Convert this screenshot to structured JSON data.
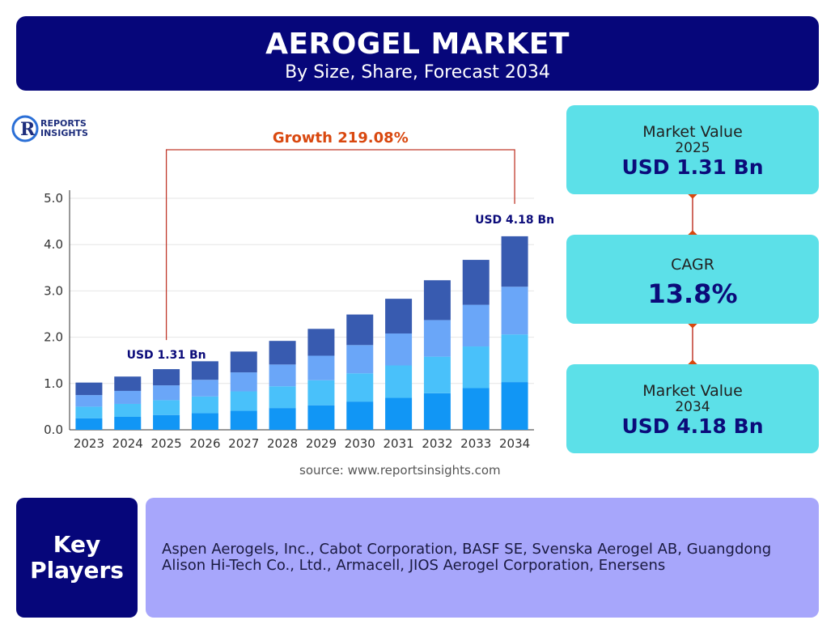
{
  "header": {
    "title": "AEROGEL MARKET",
    "subtitle": "By Size, Share, Forecast 2034"
  },
  "logo": {
    "line1": "REPORTS",
    "line2": "INSIGHTS"
  },
  "colors": {
    "navy": "#06067a",
    "teal": "#5ce0e8",
    "lavender": "#a7a6fb",
    "growth": "#d9480f",
    "seg": [
      "#1196f5",
      "#49c1fa",
      "#6aa6f8",
      "#385bb0"
    ]
  },
  "chart_data": {
    "type": "bar",
    "stacked": true,
    "categories": [
      "2023",
      "2024",
      "2025",
      "2026",
      "2027",
      "2028",
      "2029",
      "2030",
      "2031",
      "2032",
      "2033",
      "2034"
    ],
    "totals": [
      1.02,
      1.15,
      1.31,
      1.48,
      1.69,
      1.92,
      2.18,
      2.49,
      2.83,
      3.23,
      3.67,
      4.18
    ],
    "series": [
      {
        "values": [
          0.25,
          0.28,
          0.32,
          0.36,
          0.41,
          0.47,
          0.53,
          0.61,
          0.69,
          0.79,
          0.9,
          1.03
        ]
      },
      {
        "values": [
          0.25,
          0.28,
          0.32,
          0.36,
          0.42,
          0.47,
          0.54,
          0.61,
          0.7,
          0.79,
          0.9,
          1.03
        ]
      },
      {
        "values": [
          0.25,
          0.28,
          0.32,
          0.36,
          0.41,
          0.47,
          0.53,
          0.61,
          0.69,
          0.79,
          0.9,
          1.03
        ]
      },
      {
        "values": [
          0.27,
          0.31,
          0.35,
          0.4,
          0.45,
          0.51,
          0.58,
          0.66,
          0.75,
          0.86,
          0.97,
          1.09
        ]
      }
    ],
    "ylim": [
      0,
      5
    ],
    "yticks": [
      "0.0",
      "1.0",
      "2.0",
      "3.0",
      "4.0",
      "5.0"
    ],
    "grid": true,
    "annotations": {
      "growth": "Growth 219.08%",
      "start_label": "USD 1.31 Bn",
      "end_label": "USD 4.18 Bn",
      "start_index": 2,
      "end_index": 11
    }
  },
  "source": "source: www.reportsinsights.com",
  "cards": {
    "mv2025": {
      "label": "Market Value",
      "year": "2025",
      "value": "USD 1.31 Bn"
    },
    "cagr": {
      "label": "CAGR",
      "value": "13.8%"
    },
    "mv2034": {
      "label": "Market Value",
      "year": "2034",
      "value": "USD 4.18 Bn"
    }
  },
  "key_players": {
    "title_line1": "Key",
    "title_line2": "Players",
    "list": "Aspen Aerogels, Inc., Cabot Corporation, BASF SE, Svenska Aerogel AB, Guangdong Alison Hi-Tech Co., Ltd., Armacell, JIOS Aerogel Corporation, Enersens"
  }
}
